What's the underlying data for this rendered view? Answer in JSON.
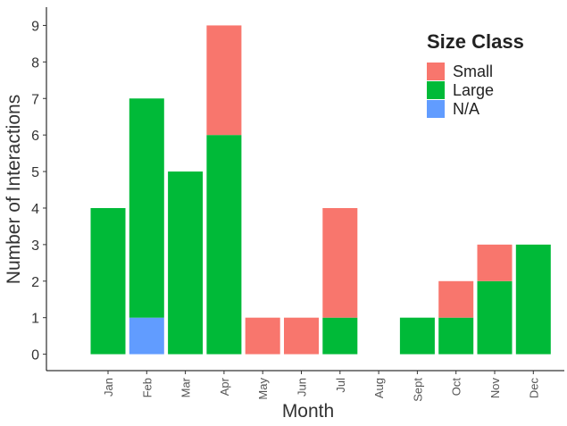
{
  "chart_data": {
    "type": "stacked_bar",
    "x_label": "Month",
    "y_label": "Number of Interactions",
    "legend_title": "Size Class",
    "categories": [
      "Jan",
      "Feb",
      "Mar",
      "Apr",
      "May",
      "Jun",
      "Jul",
      "Aug",
      "Sept",
      "Oct",
      "Nov",
      "Dec"
    ],
    "series": [
      {
        "name": "Small",
        "color": "#F8766D",
        "values": [
          0,
          0,
          0,
          3,
          1,
          1,
          3,
          0,
          0,
          1,
          1,
          0
        ]
      },
      {
        "name": "Large",
        "color": "#00BA38",
        "values": [
          4,
          6,
          5,
          6,
          0,
          0,
          1,
          0,
          1,
          1,
          2,
          3
        ]
      },
      {
        "name": "N/A",
        "color": "#619CFF",
        "values": [
          0,
          1,
          0,
          0,
          0,
          0,
          0,
          0,
          0,
          0,
          0,
          0
        ]
      }
    ],
    "stack_order": "bottom-up: N/A, Large, Small",
    "ylim": [
      -0.45,
      9.5
    ],
    "yticks": [
      0,
      1,
      2,
      3,
      4,
      5,
      6,
      7,
      8,
      9
    ],
    "legend_position": "top-right"
  }
}
